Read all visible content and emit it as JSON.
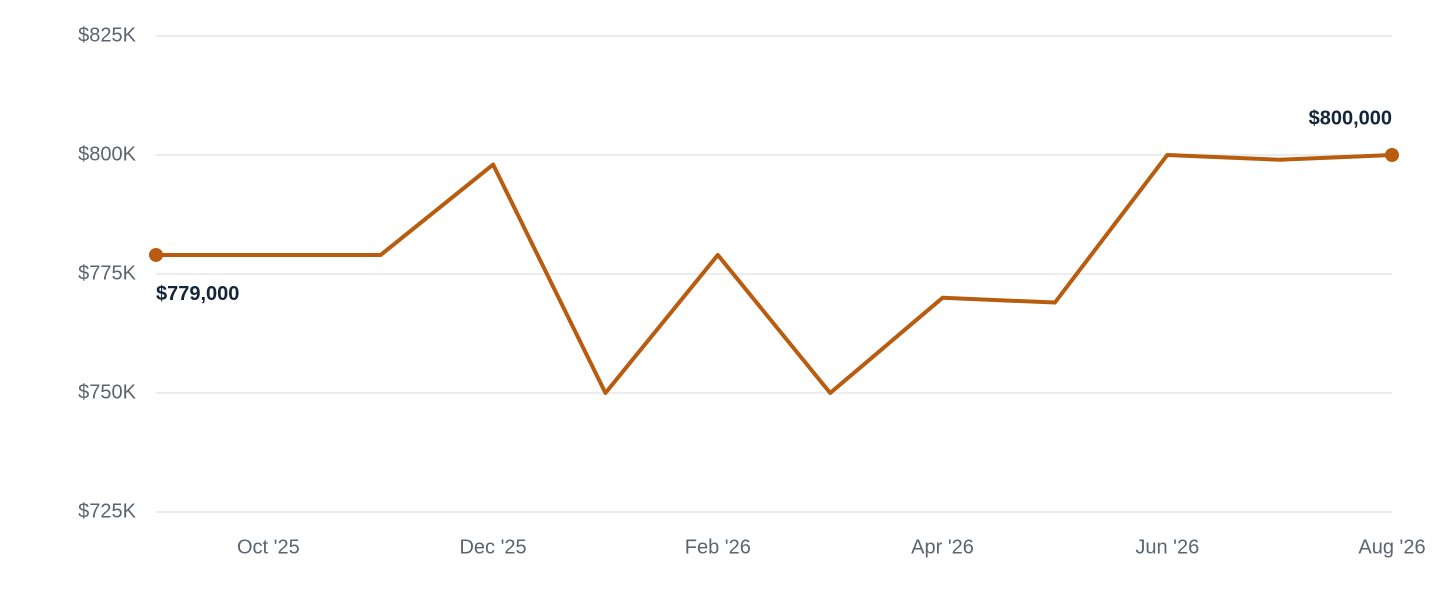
{
  "chart_data": {
    "type": "line",
    "categories": [
      null,
      "Oct '25",
      null,
      "Dec '25",
      null,
      "Feb '26",
      null,
      "Apr '26",
      null,
      "Jun '26",
      null,
      "Aug '26"
    ],
    "series": [
      {
        "color": "#b85c0f",
        "values": [
          779000,
          779000,
          779000,
          798000,
          750000,
          779000,
          750000,
          770000,
          769000,
          800000,
          799000,
          800000
        ],
        "value_labels": [
          "$779,000",
          null,
          null,
          null,
          null,
          null,
          null,
          null,
          null,
          null,
          null,
          "$800,000"
        ]
      }
    ],
    "ylim": [
      725000,
      825000
    ],
    "yticks": [
      {
        "value": 725000,
        "label": "$725K"
      },
      {
        "value": 750000,
        "label": "$750K"
      },
      {
        "value": 775000,
        "label": "$775K"
      },
      {
        "value": 800000,
        "label": "$800K"
      },
      {
        "value": 825000,
        "label": "$825K"
      }
    ],
    "grid": true
  }
}
